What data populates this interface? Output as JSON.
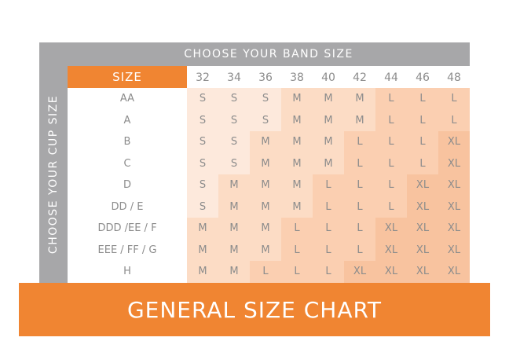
{
  "band_title": "CHOOSE YOUR BAND SIZE",
  "cup_title": "CHOOSE YOUR CUP SIZE",
  "size_header": "SIZE",
  "bands": [
    "32",
    "34",
    "36",
    "38",
    "40",
    "42",
    "44",
    "46",
    "48"
  ],
  "rows": [
    {
      "cup": "AA",
      "sizes": [
        "S",
        "S",
        "S",
        "M",
        "M",
        "M",
        "L",
        "L",
        "L"
      ]
    },
    {
      "cup": "A",
      "sizes": [
        "S",
        "S",
        "S",
        "M",
        "M",
        "M",
        "L",
        "L",
        "L"
      ]
    },
    {
      "cup": "B",
      "sizes": [
        "S",
        "S",
        "M",
        "M",
        "M",
        "L",
        "L",
        "L",
        "XL"
      ]
    },
    {
      "cup": "C",
      "sizes": [
        "S",
        "S",
        "M",
        "M",
        "M",
        "L",
        "L",
        "L",
        "XL"
      ]
    },
    {
      "cup": "D",
      "sizes": [
        "S",
        "M",
        "M",
        "M",
        "L",
        "L",
        "L",
        "XL",
        "XL"
      ]
    },
    {
      "cup": "DD / E",
      "sizes": [
        "S",
        "M",
        "M",
        "M",
        "L",
        "L",
        "L",
        "XL",
        "XL"
      ]
    },
    {
      "cup": "DDD /EE / F",
      "sizes": [
        "M",
        "M",
        "M",
        "L",
        "L",
        "L",
        "XL",
        "XL",
        "XL"
      ]
    },
    {
      "cup": "EEE / FF / G",
      "sizes": [
        "M",
        "M",
        "M",
        "L",
        "L",
        "L",
        "XL",
        "XL",
        "XL"
      ]
    },
    {
      "cup": "H",
      "sizes": [
        "M",
        "M",
        "L",
        "L",
        "L",
        "XL",
        "XL",
        "XL",
        "XL"
      ]
    }
  ],
  "size_colors": {
    "S": "#fde9dc",
    "M": "#fcdcc5",
    "L": "#fbcfb1",
    "XL": "#f8c39f"
  },
  "footer_title": "GENERAL SIZE CHART",
  "accent_color": "#f08532"
}
